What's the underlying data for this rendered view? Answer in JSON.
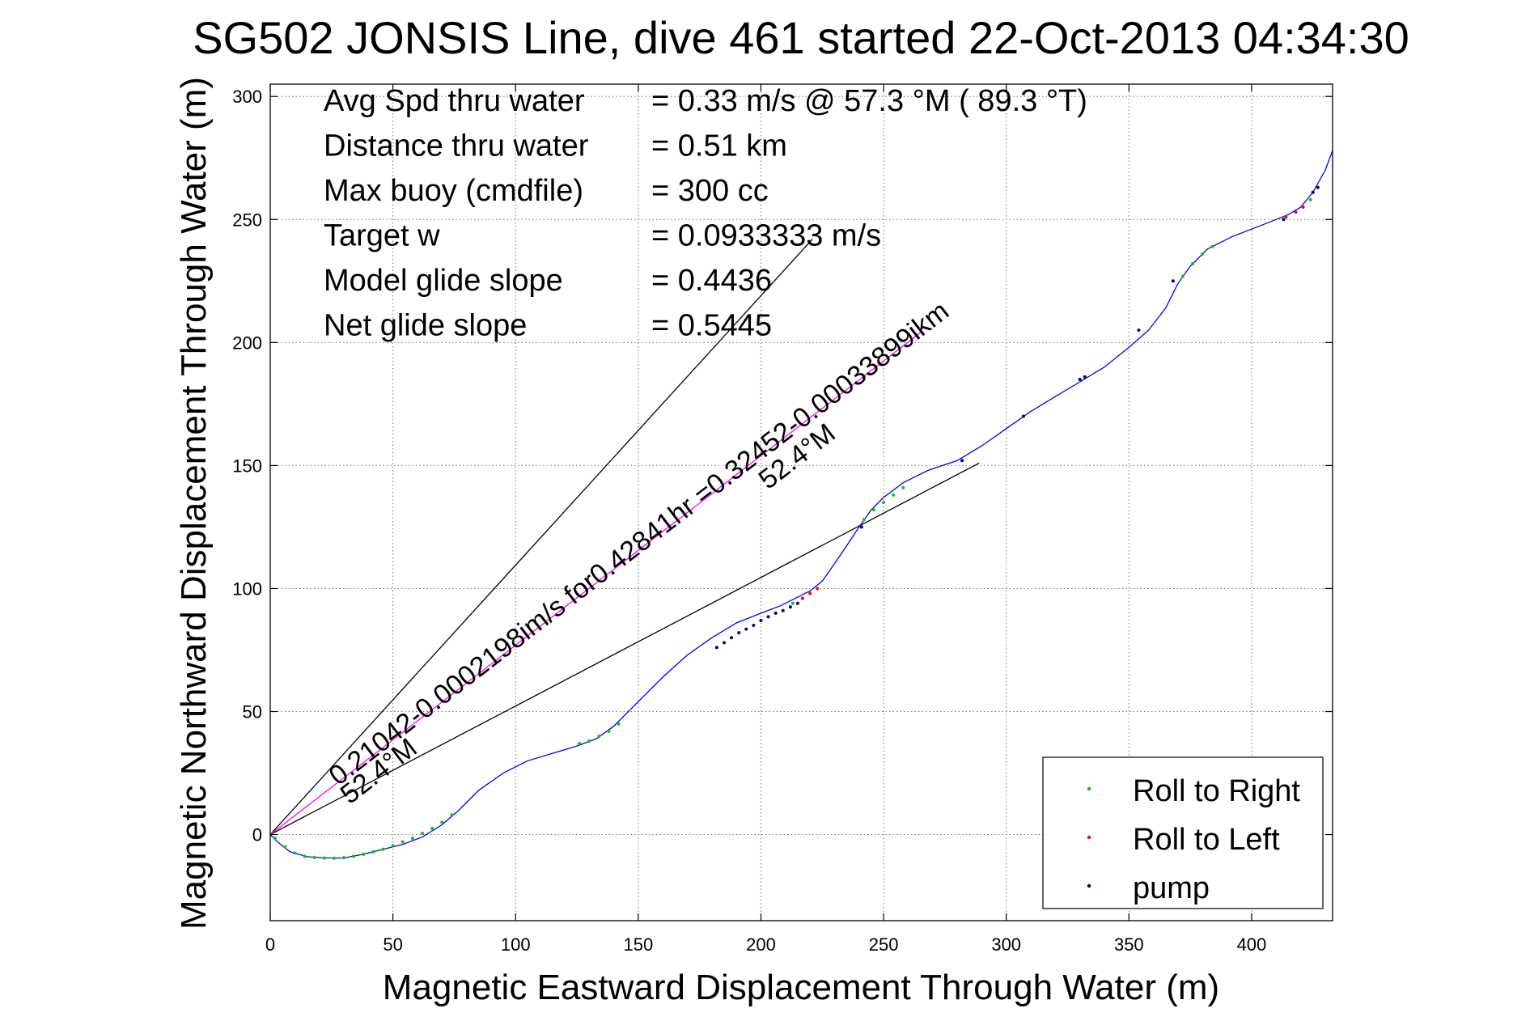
{
  "chart_data": {
    "type": "scatter",
    "title": "SG502 JONSIS Line, dive 461 started 22-Oct-2013 04:34:30",
    "xlabel": "Magnetic Eastward Displacement Through Water (m)",
    "ylabel": "Magnetic Northward Displacement Through Water (m)",
    "xlim": [
      0,
      433
    ],
    "ylim": [
      -35,
      305
    ],
    "xticks": [
      0,
      50,
      100,
      150,
      200,
      250,
      300,
      350,
      400
    ],
    "yticks": [
      0,
      50,
      100,
      150,
      200,
      250,
      300
    ],
    "grid": true,
    "legend_position": "bottom-right",
    "stats": [
      {
        "label": "Avg Spd thru water",
        "value": "=  0.33 m/s @  57.3 °M ( 89.3 °T)"
      },
      {
        "label": "Distance thru water",
        "value": "=  0.51 km"
      },
      {
        "label": "Max buoy (cmdfile)",
        "value": "= 300 cc"
      },
      {
        "label": "Target w",
        "value": "= 0.0933333 m/s"
      },
      {
        "label": "Model glide slope",
        "value": "= 0.4436"
      },
      {
        "label": "Net glide slope",
        "value": "= 0.5445"
      }
    ],
    "annotations": [
      {
        "text": "0.21042-0.0002198im/s for0.42841hr =0.32452-0.00033899ikm"
      },
      {
        "text": "52.4°M"
      },
      {
        "text": "52.4°M"
      }
    ],
    "reference_lines": [
      {
        "x": [
          0,
          221
        ],
        "y": [
          0,
          242
        ],
        "color": "#000000"
      },
      {
        "x": [
          0,
          289
        ],
        "y": [
          0,
          151
        ],
        "color": "#000000"
      },
      {
        "x": [
          0,
          265
        ],
        "y": [
          0,
          204
        ],
        "color": "#ff00ff"
      }
    ],
    "track": {
      "color": "#0000ff",
      "x": [
        0,
        3,
        8,
        15,
        22,
        30,
        38,
        46,
        54,
        62,
        70,
        77,
        85,
        95,
        105,
        115,
        125,
        133,
        140,
        150,
        160,
        170,
        180,
        190,
        200,
        208,
        214,
        220,
        225,
        232,
        240,
        245,
        250,
        258,
        268,
        280,
        290,
        300,
        310,
        320,
        330,
        340,
        350,
        358,
        365,
        370,
        375,
        382,
        392,
        405,
        415,
        420,
        425,
        430,
        433
      ],
      "y": [
        0,
        -3,
        -7,
        -9,
        -9.5,
        -9.5,
        -8,
        -6,
        -4,
        -1,
        4,
        10,
        18,
        25,
        30,
        33,
        36,
        39,
        44,
        54,
        64,
        73,
        80,
        86,
        90,
        93,
        96,
        99,
        103,
        113,
        125,
        132,
        137,
        143,
        148,
        152,
        158,
        165,
        172,
        178,
        184,
        190,
        198,
        205,
        214,
        224,
        231,
        238,
        243,
        248,
        252,
        255,
        261,
        270,
        278
      ]
    },
    "series": [
      {
        "name": "Roll to Right",
        "color": "#00cc00",
        "x": [
          2,
          6,
          10,
          14,
          18,
          22,
          26,
          30,
          34,
          38,
          42,
          46,
          50,
          54,
          58,
          62,
          66,
          70,
          74,
          126,
          130,
          134,
          138,
          142,
          242,
          246,
          250,
          254,
          258,
          372,
          376,
          380,
          384,
          213,
          424
        ],
        "y": [
          -1.5,
          -5,
          -7.5,
          -8.8,
          -9.3,
          -9.5,
          -9.6,
          -9.4,
          -8.8,
          -8,
          -7,
          -6,
          -4.5,
          -3,
          -1.5,
          0.5,
          2.5,
          5,
          8,
          37,
          38,
          40,
          42,
          45,
          128,
          132,
          135,
          138,
          141,
          227,
          232,
          236,
          239,
          94,
          258
        ]
      },
      {
        "name": "Roll to Left",
        "color": "#ff0000",
        "x": [
          217,
          220,
          223,
          414,
          418,
          421
        ],
        "y": [
          96,
          98,
          100,
          251,
          253,
          255
        ]
      },
      {
        "name": "pump",
        "color": "#000066",
        "x": [
          182,
          185,
          188,
          191,
          194,
          197,
          200,
          203,
          206,
          209,
          212,
          215,
          241,
          282,
          307,
          330,
          332,
          354,
          368,
          413,
          425,
          427
        ],
        "y": [
          76,
          78,
          80,
          82,
          83.5,
          85,
          87,
          88.5,
          90,
          91,
          92.5,
          94,
          125,
          152,
          170,
          185,
          186,
          205,
          225,
          250,
          261,
          263
        ]
      }
    ]
  }
}
